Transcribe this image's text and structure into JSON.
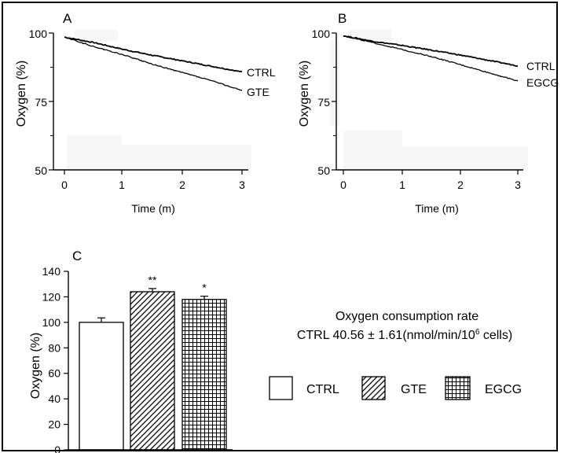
{
  "chart_data": [
    {
      "panel_label": "A",
      "type": "line",
      "xlabel": "Time (m)",
      "ylabel": "Oxygen (%)",
      "xlim": [
        0,
        3.1
      ],
      "ylim": [
        50,
        100
      ],
      "xticks": [
        0,
        1,
        2,
        3
      ],
      "yticks": [
        50,
        75,
        100
      ],
      "grid": false,
      "series": [
        {
          "name": "CTRL",
          "x": [
            0,
            0.5,
            1,
            1.5,
            2,
            2.5,
            3
          ],
          "y": [
            98.5,
            96.5,
            94.0,
            91.8,
            89.8,
            87.8,
            85.8
          ]
        },
        {
          "name": "GTE",
          "x": [
            0,
            0.5,
            1,
            1.5,
            2,
            2.5,
            3
          ],
          "y": [
            98.5,
            95.0,
            92.0,
            88.5,
            85.5,
            82.5,
            79.0
          ]
        }
      ]
    },
    {
      "panel_label": "B",
      "type": "line",
      "xlabel": "Time (m)",
      "ylabel": "Oxygen (%)",
      "xlim": [
        0,
        3.1
      ],
      "ylim": [
        50,
        100
      ],
      "xticks": [
        0,
        1,
        2,
        3
      ],
      "yticks": [
        50,
        75,
        100
      ],
      "grid": false,
      "series": [
        {
          "name": "CTRL",
          "x": [
            0,
            0.5,
            1,
            1.5,
            2,
            2.5,
            3
          ],
          "y": [
            99.0,
            97.0,
            95.5,
            93.8,
            92.0,
            90.0,
            88.0
          ]
        },
        {
          "name": "EGCG",
          "x": [
            0,
            0.5,
            1,
            1.5,
            2,
            2.5,
            3
          ],
          "y": [
            99.0,
            96.5,
            94.0,
            91.5,
            88.5,
            85.5,
            82.5
          ]
        }
      ]
    },
    {
      "panel_label": "C",
      "type": "bar",
      "ylabel": "Oxygen (%)",
      "ylim": [
        0,
        140
      ],
      "yticks": [
        0,
        20,
        40,
        60,
        80,
        100,
        120,
        140
      ],
      "categories": [
        "CTRL",
        "GTE",
        "EGCG"
      ],
      "values": [
        100,
        124,
        118
      ],
      "errors": [
        3.5,
        2.5,
        2.5
      ],
      "significance": [
        "",
        "**",
        "*"
      ],
      "patterns": [
        "solid-white",
        "diagonal-hatch",
        "grid-hatch"
      ],
      "legend": {
        "placement": "right",
        "items": [
          {
            "label": "CTRL",
            "pattern": "solid-white"
          },
          {
            "label": "GTE",
            "pattern": "diagonal-hatch"
          },
          {
            "label": "EGCG",
            "pattern": "grid-hatch"
          }
        ]
      },
      "annotation": {
        "title": "Oxygen consumption rate",
        "line_prefix": "CTRL 40.56 ± 1.61(nmol/min/10",
        "line_superscript": "6",
        "line_suffix": " cells)"
      }
    }
  ],
  "colors": {
    "ink": "#000000",
    "background": "#ffffff",
    "shading": "#f6f6f6"
  }
}
